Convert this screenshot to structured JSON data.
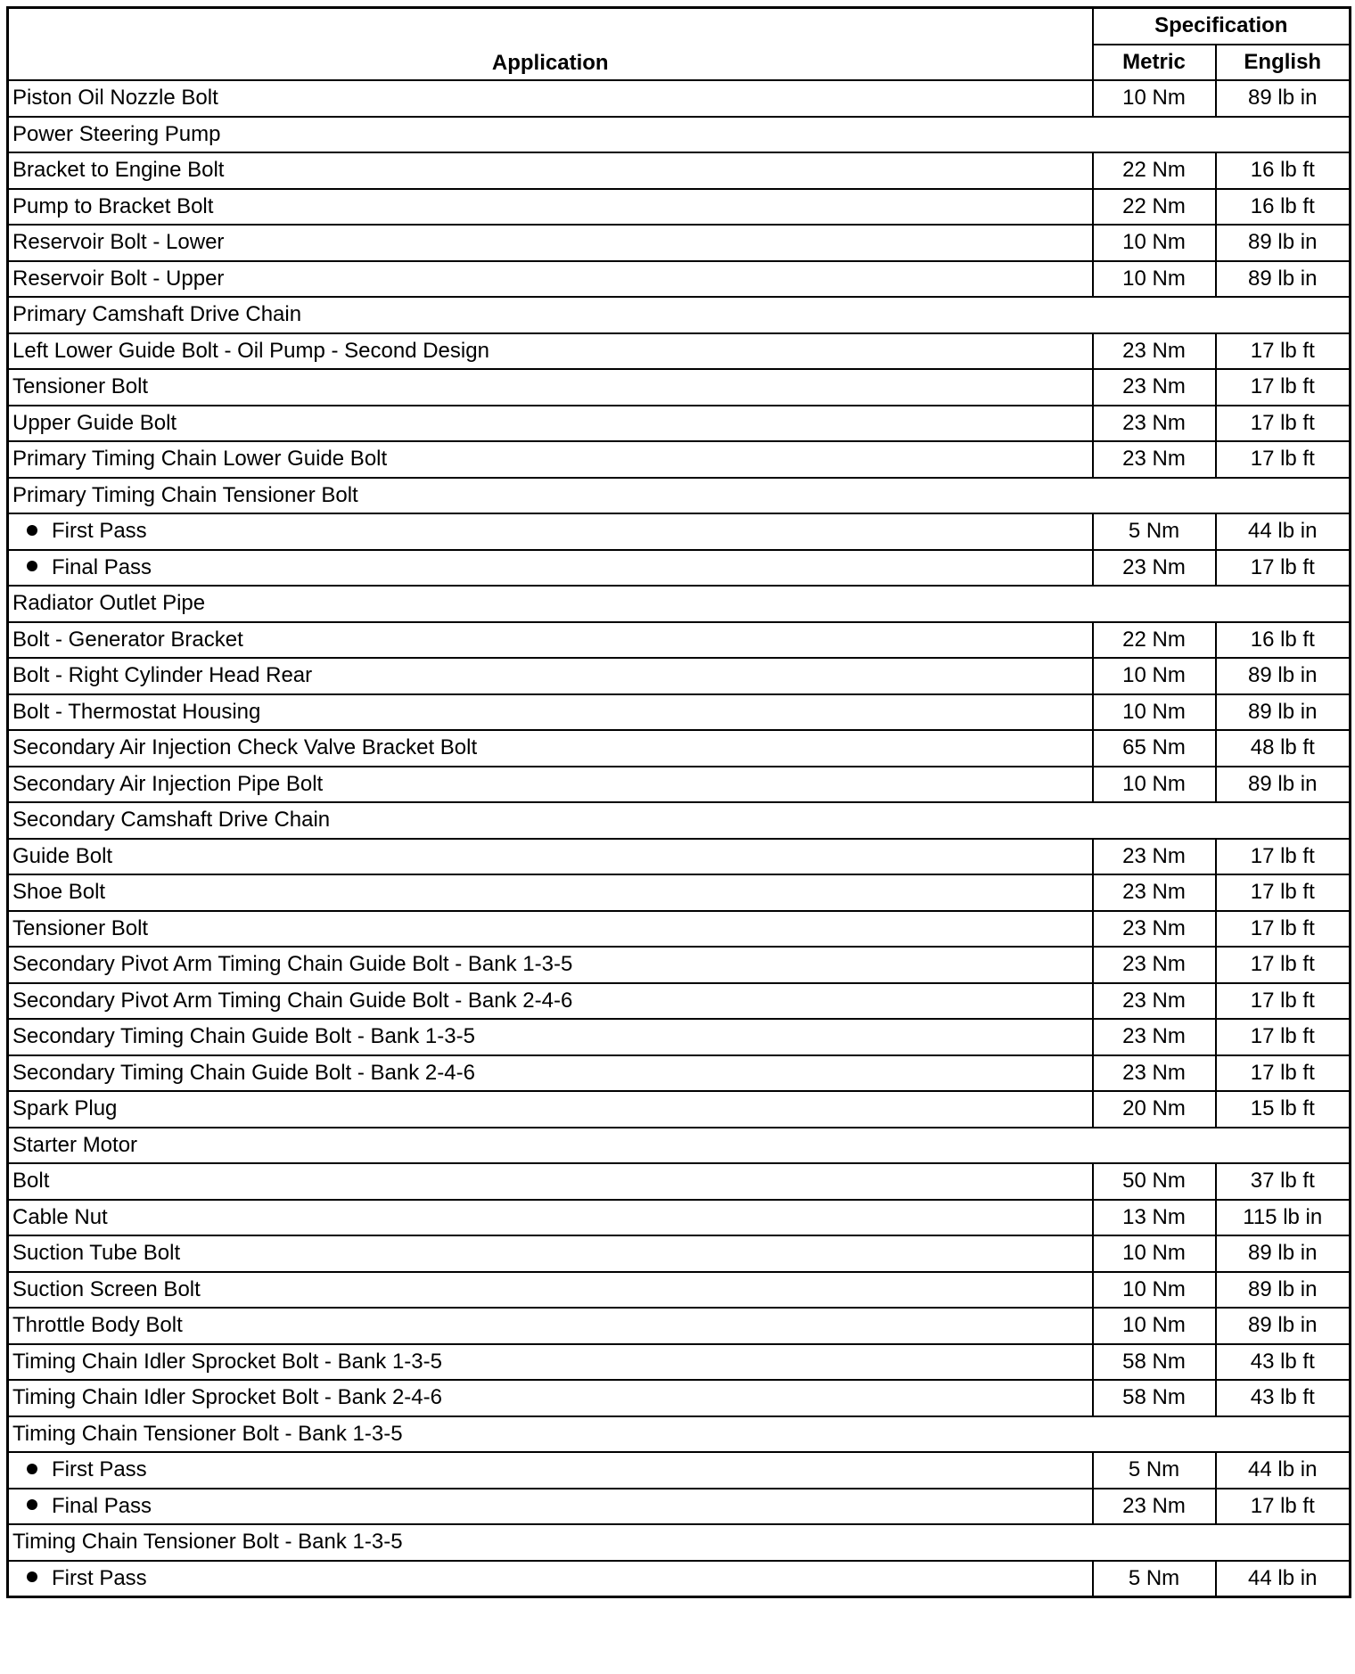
{
  "header": {
    "application": "Application",
    "specification": "Specification",
    "metric": "Metric",
    "english": "English"
  },
  "rows": [
    {
      "label": "Piston Oil Nozzle Bolt",
      "metric": "10 Nm",
      "english": "89 lb in"
    },
    {
      "label": "Power Steering Pump",
      "group": true
    },
    {
      "label": "Bracket to Engine Bolt",
      "metric": "22 Nm",
      "english": "16 lb ft"
    },
    {
      "label": "Pump to Bracket Bolt",
      "metric": "22 Nm",
      "english": "16 lb ft"
    },
    {
      "label": "Reservoir Bolt - Lower",
      "metric": "10 Nm",
      "english": "89 lb in"
    },
    {
      "label": "Reservoir Bolt - Upper",
      "metric": "10 Nm",
      "english": "89 lb in"
    },
    {
      "label": "Primary Camshaft Drive Chain",
      "group": true
    },
    {
      "label": "Left Lower Guide Bolt - Oil Pump - Second Design",
      "metric": "23 Nm",
      "english": "17 lb ft"
    },
    {
      "label": "Tensioner Bolt",
      "metric": "23 Nm",
      "english": "17 lb ft"
    },
    {
      "label": "Upper Guide Bolt",
      "metric": "23 Nm",
      "english": "17 lb ft"
    },
    {
      "label": "Primary Timing Chain Lower Guide Bolt",
      "metric": "23 Nm",
      "english": "17 lb ft"
    },
    {
      "label": "Primary Timing Chain Tensioner Bolt",
      "group": true
    },
    {
      "label": "First Pass",
      "bullet": true,
      "metric": "5 Nm",
      "english": "44 lb in"
    },
    {
      "label": "Final Pass",
      "bullet": true,
      "metric": "23 Nm",
      "english": "17 lb ft"
    },
    {
      "label": "Radiator Outlet Pipe",
      "group": true
    },
    {
      "label": "Bolt - Generator Bracket",
      "metric": "22 Nm",
      "english": "16 lb ft"
    },
    {
      "label": "Bolt - Right Cylinder Head Rear",
      "metric": "10 Nm",
      "english": "89 lb in"
    },
    {
      "label": "Bolt - Thermostat Housing",
      "metric": "10 Nm",
      "english": "89 lb in"
    },
    {
      "label": "Secondary Air Injection Check Valve Bracket Bolt",
      "metric": "65 Nm",
      "english": "48 lb ft"
    },
    {
      "label": "Secondary Air Injection Pipe Bolt",
      "metric": "10 Nm",
      "english": "89 lb in"
    },
    {
      "label": "Secondary Camshaft Drive Chain",
      "group": true
    },
    {
      "label": "Guide Bolt",
      "metric": "23 Nm",
      "english": "17 lb ft"
    },
    {
      "label": "Shoe Bolt",
      "metric": "23 Nm",
      "english": "17 lb ft"
    },
    {
      "label": "Tensioner Bolt",
      "metric": "23 Nm",
      "english": "17 lb ft"
    },
    {
      "label": "Secondary Pivot Arm Timing Chain Guide Bolt - Bank 1-3-5",
      "metric": "23 Nm",
      "english": "17 lb ft"
    },
    {
      "label": "Secondary Pivot Arm Timing Chain Guide Bolt - Bank 2-4-6",
      "metric": "23 Nm",
      "english": "17 lb ft"
    },
    {
      "label": "Secondary Timing Chain Guide Bolt - Bank 1-3-5",
      "metric": "23 Nm",
      "english": "17 lb ft"
    },
    {
      "label": "Secondary Timing Chain Guide Bolt - Bank 2-4-6",
      "metric": "23 Nm",
      "english": "17 lb ft"
    },
    {
      "label": "Spark Plug",
      "metric": "20 Nm",
      "english": "15 lb ft"
    },
    {
      "label": "Starter Motor",
      "group": true
    },
    {
      "label": "Bolt",
      "metric": "50 Nm",
      "english": "37 lb ft"
    },
    {
      "label": "Cable Nut",
      "metric": "13 Nm",
      "english": "115 lb in"
    },
    {
      "label": "Suction Tube Bolt",
      "metric": "10 Nm",
      "english": "89 lb in"
    },
    {
      "label": "Suction Screen Bolt",
      "metric": "10 Nm",
      "english": "89 lb in"
    },
    {
      "label": "Throttle Body Bolt",
      "metric": "10 Nm",
      "english": "89 lb in"
    },
    {
      "label": "Timing Chain Idler Sprocket Bolt - Bank 1-3-5",
      "metric": "58 Nm",
      "english": "43 lb ft"
    },
    {
      "label": "Timing Chain Idler Sprocket Bolt - Bank 2-4-6",
      "metric": "58 Nm",
      "english": "43 lb ft"
    },
    {
      "label": "Timing Chain Tensioner Bolt - Bank 1-3-5",
      "group": true
    },
    {
      "label": "First Pass",
      "bullet": true,
      "metric": "5 Nm",
      "english": "44 lb in"
    },
    {
      "label": "Final Pass",
      "bullet": true,
      "metric": "23 Nm",
      "english": "17 lb ft"
    },
    {
      "label": "Timing Chain Tensioner Bolt - Bank 1-3-5",
      "group": true
    },
    {
      "label": "First Pass",
      "bullet": true,
      "metric": "5 Nm",
      "english": "44 lb in"
    }
  ]
}
